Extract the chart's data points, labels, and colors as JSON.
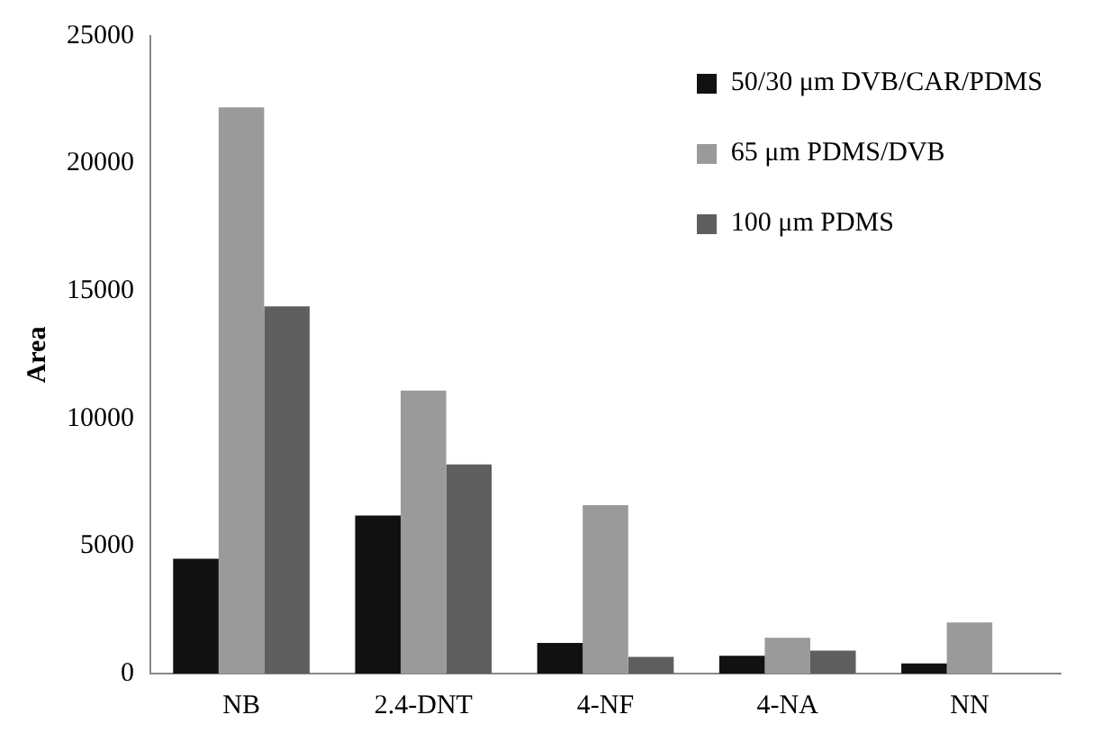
{
  "chart_data": {
    "type": "bar",
    "ylabel": "Area",
    "categories": [
      "NB",
      "2.4-DNT",
      "4-NF",
      "4-NA",
      "NN"
    ],
    "series": [
      {
        "name": "50/30 μm DVB/CAR/PDMS",
        "color": "#111111",
        "values": [
          4500,
          6200,
          1200,
          700,
          400
        ]
      },
      {
        "name": "65 μm PDMS/DVB",
        "color": "#9a9a9a",
        "values": [
          22200,
          11100,
          6600,
          1400,
          2000
        ]
      },
      {
        "name": "100 μm PDMS",
        "color": "#5e5e5e",
        "values": [
          14400,
          8200,
          650,
          900,
          0
        ]
      }
    ],
    "ylim": [
      0,
      25000
    ],
    "yticks": [
      0,
      5000,
      10000,
      15000,
      20000,
      25000
    ],
    "grid": false,
    "legend": "top right"
  }
}
